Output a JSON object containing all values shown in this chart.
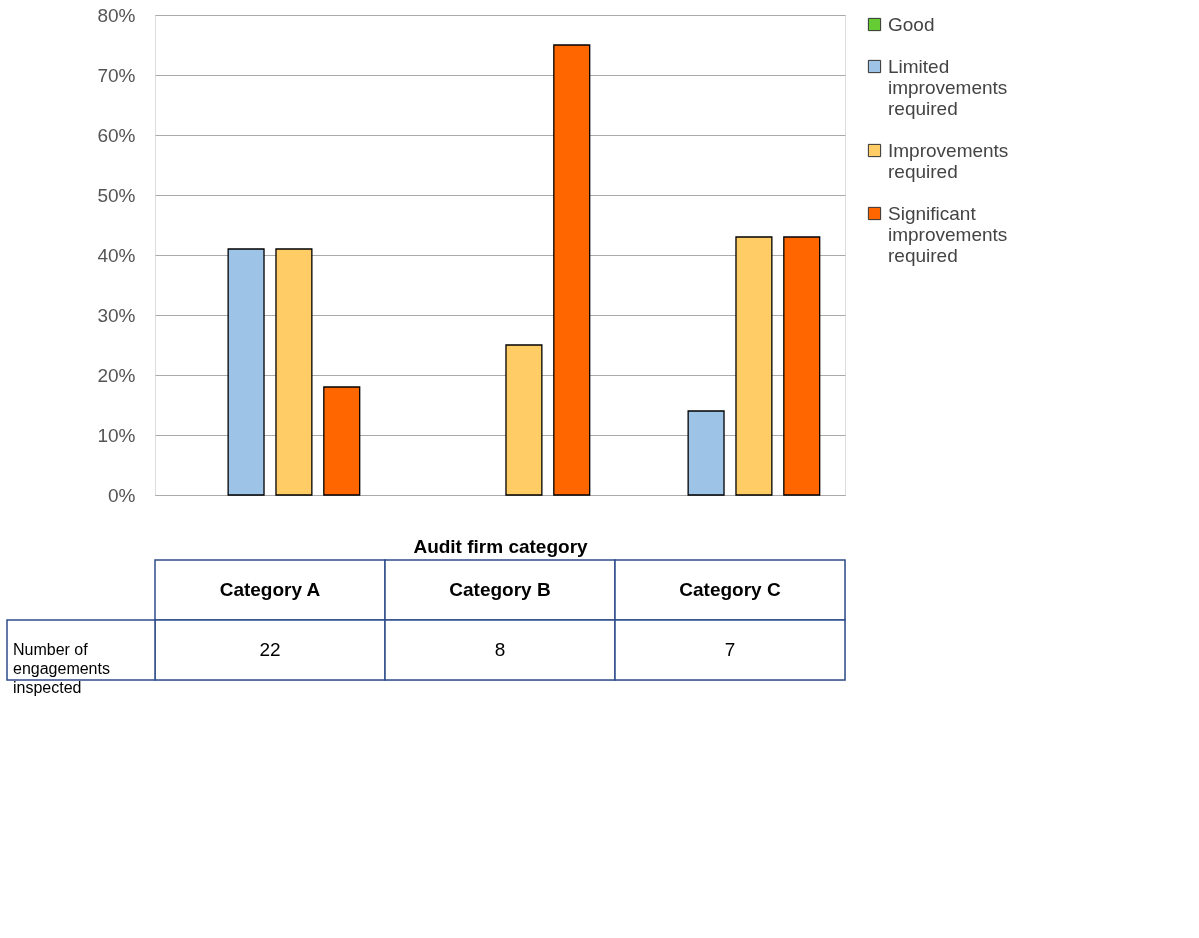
{
  "chart_data": {
    "type": "bar",
    "xlabel": "Audit firm category",
    "categories": [
      "Category A",
      "Category B",
      "Category C"
    ],
    "series": [
      {
        "name": "Good",
        "color": "#66cc33",
        "values": [
          null,
          null,
          null
        ]
      },
      {
        "name": "Limited improvements required",
        "color": "#9dc3e6",
        "values": [
          41,
          null,
          14
        ]
      },
      {
        "name": "Improvements required",
        "color": "#ffcc66",
        "values": [
          41,
          25,
          43
        ]
      },
      {
        "name": "Significant improvements required",
        "color": "#ff6600",
        "values": [
          18,
          75,
          43
        ]
      }
    ],
    "ylim": [
      0,
      80
    ],
    "yticks": [
      {
        "value": 0,
        "label": "0%"
      },
      {
        "value": 10,
        "label": "10%"
      },
      {
        "value": 20,
        "label": "20%"
      },
      {
        "value": 30,
        "label": "30%"
      },
      {
        "value": 40,
        "label": "40%"
      },
      {
        "value": 50,
        "label": "50%"
      },
      {
        "value": 60,
        "label": "60%"
      },
      {
        "value": 70,
        "label": "70%"
      },
      {
        "value": 80,
        "label": "80%"
      }
    ],
    "grid": "y",
    "legend": "right",
    "annotations": [
      "Number of engagements inspected",
      "22",
      "8",
      "7"
    ]
  }
}
